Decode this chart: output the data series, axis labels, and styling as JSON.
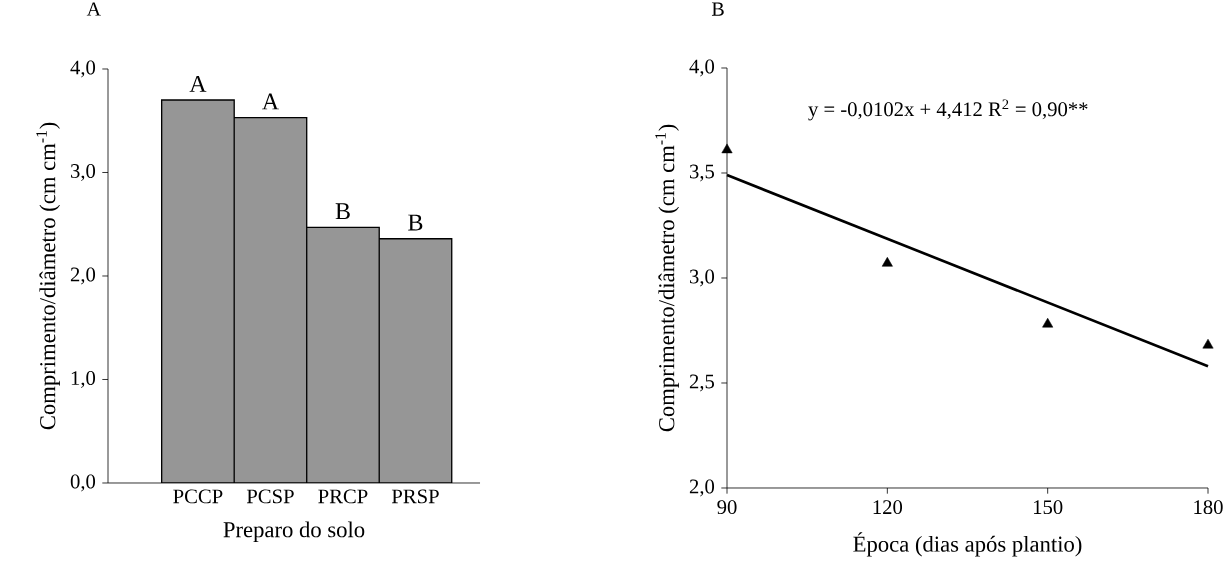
{
  "chart_data": [
    {
      "type": "bar",
      "title": "A",
      "xlabel": "Preparo do solo",
      "ylabel": "Comprimento/diâmetro (cm cm$^{-1}$)",
      "categories": [
        "PCCP",
        "PCSP",
        "PRCP",
        "PRSP"
      ],
      "values": [
        3.7,
        3.53,
        2.47,
        2.36
      ],
      "color": "#969696",
      "value_labels": [
        "A",
        "A",
        "B",
        "B"
      ],
      "ylim": [
        0,
        4
      ],
      "yticks": [
        {
          "value": 0,
          "label": "0,0"
        },
        {
          "value": 1,
          "label": "1,0"
        },
        {
          "value": 2,
          "label": "2,0"
        },
        {
          "value": 3,
          "label": "3,0"
        },
        {
          "value": 4,
          "label": "4,0"
        }
      ],
      "grid": false
    },
    {
      "type": "scatter",
      "title": "B",
      "xlabel": "Época (dias após plantio)",
      "ylabel": "Comprimento/diâmetro (cm cm$^{-1}$)",
      "x": [
        90,
        120,
        150,
        180
      ],
      "series": [
        {
          "type": "scatter",
          "color": "#000000",
          "marker": "triangle",
          "values": [
            3.61,
            3.07,
            2.78,
            2.68
          ]
        },
        {
          "type": "line",
          "color": "#000000",
          "marker": "none",
          "line_style": "solid",
          "x": [
            90,
            180
          ],
          "values": [
            3.49,
            2.58
          ]
        }
      ],
      "annotations": [
        "y = -0,0102x + 4,412   R$^{2}$ = 0,90**"
      ],
      "xlim": [
        90,
        180
      ],
      "xticks": [
        90,
        120,
        150,
        180
      ],
      "ylim": [
        2,
        4
      ],
      "yticks": [
        {
          "value": 2,
          "label": "2,0"
        },
        {
          "value": 2.5,
          "label": "2,5"
        },
        {
          "value": 3,
          "label": "3,0"
        },
        {
          "value": 3.5,
          "label": "3,5"
        },
        {
          "value": 4,
          "label": "4,0"
        }
      ],
      "grid": false
    }
  ]
}
